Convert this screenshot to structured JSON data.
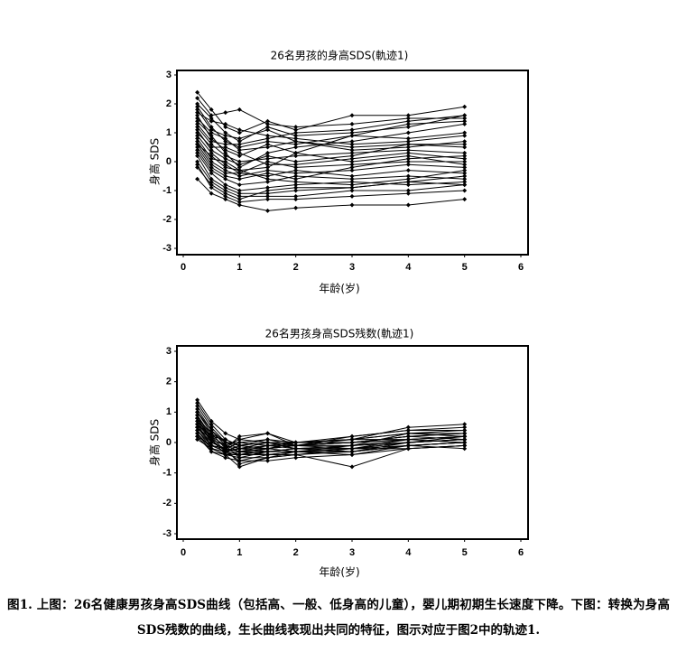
{
  "chart_data": [
    {
      "type": "line",
      "title": "26名男孩的身高SDS(軌迹1)",
      "x_label": "年龄(岁)",
      "y_label": "身高 SDS",
      "color": "#000000",
      "xlim": [
        0,
        6
      ],
      "xticks": [
        0,
        1,
        2,
        3,
        4,
        5,
        6
      ],
      "ylim": [
        -3,
        3
      ],
      "yticks": [
        -3,
        -2,
        -1,
        0,
        1,
        2,
        3
      ],
      "x": [
        0.25,
        0.5,
        0.75,
        1,
        1.5,
        2,
        3,
        4,
        5
      ],
      "series": [
        {
          "values": [
            2.4,
            1.8,
            1.2,
            1.0,
            1.4,
            1.1,
            1.6,
            1.6,
            1.9
          ]
        },
        {
          "values": [
            2.2,
            1.6,
            1.7,
            1.8,
            1.3,
            1.2,
            1.3,
            1.5,
            1.5
          ]
        },
        {
          "values": [
            2.0,
            1.5,
            1.0,
            0.7,
            1.2,
            0.9,
            1.0,
            1.2,
            1.6
          ]
        },
        {
          "values": [
            1.9,
            1.2,
            0.7,
            0.5,
            0.7,
            0.6,
            0.9,
            1.3,
            1.4
          ]
        },
        {
          "values": [
            1.7,
            1.4,
            1.3,
            1.1,
            0.9,
            0.8,
            0.6,
            0.7,
            0.9
          ]
        },
        {
          "values": [
            1.5,
            1.0,
            0.8,
            0.4,
            0.5,
            0.7,
            0.5,
            0.6,
            0.6
          ]
        },
        {
          "values": [
            1.4,
            0.9,
            0.3,
            -0.2,
            0.3,
            0.5,
            0.7,
            1.0,
            1.3
          ]
        },
        {
          "values": [
            1.2,
            0.6,
            0.2,
            0.0,
            0.1,
            0.2,
            0.3,
            0.4,
            0.3
          ]
        },
        {
          "values": [
            1.0,
            0.5,
            0.5,
            0.3,
            -0.1,
            -0.1,
            0.1,
            0.3,
            0.1
          ]
        },
        {
          "values": [
            0.9,
            0.3,
            -0.1,
            -0.4,
            0.0,
            -0.2,
            -0.1,
            0.0,
            0.0
          ]
        },
        {
          "values": [
            0.8,
            0.1,
            0.0,
            -0.3,
            -0.2,
            0.3,
            0.0,
            0.2,
            -0.1
          ]
        },
        {
          "values": [
            0.7,
            0.0,
            -0.3,
            -0.5,
            -0.3,
            -0.4,
            -0.3,
            -0.1,
            -0.2
          ]
        },
        {
          "values": [
            0.6,
            -0.1,
            -0.4,
            -0.4,
            -0.5,
            -0.3,
            -0.5,
            -0.3,
            -0.4
          ]
        },
        {
          "values": [
            0.5,
            -0.2,
            -0.5,
            -0.6,
            -0.4,
            -0.6,
            -0.2,
            0.1,
            0.2
          ]
        },
        {
          "values": [
            0.4,
            -0.3,
            -0.6,
            -0.8,
            -0.7,
            -0.5,
            -0.6,
            -0.5,
            -0.6
          ]
        },
        {
          "values": [
            0.3,
            -0.4,
            -0.8,
            -1.0,
            -0.9,
            -0.8,
            -0.7,
            -0.8,
            -0.7
          ]
        },
        {
          "values": [
            0.2,
            -0.6,
            -0.9,
            -1.1,
            -1.1,
            -1.0,
            -0.9,
            -0.7,
            -0.5
          ]
        },
        {
          "values": [
            0.0,
            -0.7,
            -1.0,
            -1.2,
            -1.2,
            -1.2,
            -1.0,
            -1.0,
            -0.8
          ]
        },
        {
          "values": [
            -0.1,
            -0.9,
            -1.2,
            -1.4,
            -1.3,
            -1.3,
            -1.2,
            -1.1,
            -1.0
          ]
        },
        {
          "values": [
            -0.6,
            -1.1,
            -1.3,
            -1.5,
            -1.7,
            -1.6,
            -1.5,
            -1.5,
            -1.3
          ]
        },
        {
          "values": [
            -0.2,
            -0.8,
            -1.1,
            -1.3,
            -1.0,
            -0.9,
            -0.9,
            -0.7,
            -0.8
          ]
        },
        {
          "values": [
            1.6,
            0.8,
            0.4,
            0.2,
            0.6,
            0.3,
            0.9,
            0.8,
            1.0
          ]
        },
        {
          "values": [
            1.3,
            0.7,
            0.6,
            0.6,
            0.8,
            1.0,
            1.1,
            1.4,
            1.6
          ]
        },
        {
          "values": [
            1.1,
            0.4,
            0.1,
            -0.1,
            0.2,
            0.0,
            0.2,
            0.6,
            0.5
          ]
        },
        {
          "values": [
            0.6,
            0.2,
            -0.2,
            -0.3,
            -0.6,
            -0.7,
            -0.8,
            -0.6,
            -0.3
          ]
        },
        {
          "values": [
            1.8,
            1.1,
            0.9,
            0.8,
            1.1,
            0.7,
            0.4,
            0.5,
            0.7
          ]
        }
      ]
    },
    {
      "type": "line",
      "title": "26名男孩身高SDS残数(軌迹1)",
      "x_label": "年龄(岁)",
      "y_label": "身高 SDS",
      "color": "#000000",
      "xlim": [
        0,
        6
      ],
      "xticks": [
        0,
        1,
        2,
        3,
        4,
        5,
        6
      ],
      "ylim": [
        -3,
        3
      ],
      "yticks": [
        -3,
        -2,
        -1,
        0,
        1,
        2,
        3
      ],
      "x": [
        0.25,
        0.5,
        0.75,
        1,
        1.5,
        2,
        3,
        4,
        5
      ],
      "series": [
        {
          "values": [
            1.4,
            0.7,
            0.3,
            0.1,
            0.3,
            0.0,
            0.1,
            0.5,
            0.6
          ]
        },
        {
          "values": [
            1.3,
            0.6,
            0.1,
            -0.1,
            0.1,
            -0.1,
            0.2,
            0.4,
            0.5
          ]
        },
        {
          "values": [
            1.2,
            0.5,
            0.0,
            -0.2,
            0.0,
            -0.2,
            -0.1,
            0.3,
            0.4
          ]
        },
        {
          "values": [
            1.1,
            0.4,
            -0.1,
            -0.3,
            -0.1,
            -0.1,
            0.0,
            0.2,
            0.3
          ]
        },
        {
          "values": [
            1.0,
            0.3,
            -0.2,
            -0.4,
            -0.2,
            0.0,
            0.1,
            0.1,
            0.2
          ]
        },
        {
          "values": [
            0.9,
            0.2,
            -0.1,
            -0.5,
            -0.3,
            -0.2,
            -0.2,
            0.0,
            0.1
          ]
        },
        {
          "values": [
            0.9,
            0.1,
            -0.3,
            -0.6,
            -0.4,
            -0.3,
            -0.3,
            -0.1,
            0.0
          ]
        },
        {
          "values": [
            0.8,
            0.0,
            -0.2,
            -0.7,
            -0.5,
            -0.4,
            -0.8,
            -0.2,
            -0.1
          ]
        },
        {
          "values": [
            0.8,
            0.1,
            -0.4,
            -0.8,
            -0.5,
            -0.3,
            -0.4,
            -0.1,
            0.0
          ]
        },
        {
          "values": [
            0.7,
            0.2,
            -0.3,
            -0.4,
            -0.3,
            -0.2,
            -0.1,
            0.0,
            0.1
          ]
        },
        {
          "values": [
            0.7,
            0.0,
            -0.2,
            -0.3,
            -0.2,
            -0.1,
            -0.2,
            0.1,
            0.2
          ]
        },
        {
          "values": [
            0.6,
            -0.1,
            -0.3,
            -0.2,
            -0.1,
            0.0,
            0.0,
            0.2,
            0.3
          ]
        },
        {
          "values": [
            0.6,
            0.1,
            -0.1,
            0.1,
            0.0,
            -0.1,
            0.1,
            0.3,
            0.2
          ]
        },
        {
          "values": [
            0.5,
            0.0,
            -0.2,
            0.2,
            0.3,
            -0.1,
            -0.1,
            0.0,
            0.1
          ]
        },
        {
          "values": [
            0.5,
            -0.1,
            -0.3,
            -0.1,
            -0.2,
            -0.3,
            -0.3,
            -0.1,
            0.0
          ]
        },
        {
          "values": [
            0.4,
            -0.2,
            -0.4,
            -0.3,
            -0.4,
            -0.4,
            -0.2,
            -0.2,
            -0.1
          ]
        },
        {
          "values": [
            0.4,
            -0.1,
            -0.2,
            0.0,
            -0.1,
            -0.2,
            -0.3,
            0.0,
            0.1
          ]
        },
        {
          "values": [
            0.3,
            -0.2,
            -0.3,
            -0.2,
            -0.3,
            -0.3,
            -0.1,
            0.1,
            0.2
          ]
        },
        {
          "values": [
            0.3,
            -0.3,
            -0.4,
            -0.5,
            -0.5,
            -0.4,
            -0.3,
            -0.1,
            0.0
          ]
        },
        {
          "values": [
            0.2,
            -0.3,
            -0.5,
            -0.6,
            -0.6,
            -0.5,
            -0.4,
            -0.2,
            -0.1
          ]
        },
        {
          "values": [
            0.1,
            -0.2,
            -0.4,
            -0.4,
            -0.4,
            -0.3,
            -0.2,
            0.0,
            0.2
          ]
        },
        {
          "values": [
            1.0,
            0.4,
            0.0,
            0.0,
            0.1,
            0.0,
            0.1,
            0.3,
            0.3
          ]
        },
        {
          "values": [
            0.6,
            0.2,
            0.1,
            -0.1,
            0.0,
            0.0,
            0.2,
            0.4,
            0.4
          ]
        },
        {
          "values": [
            0.5,
            0.1,
            -0.1,
            -0.2,
            -0.2,
            -0.1,
            0.0,
            0.1,
            0.0
          ]
        },
        {
          "values": [
            0.2,
            -0.1,
            -0.2,
            -0.3,
            -0.3,
            -0.2,
            -0.2,
            -0.1,
            -0.2
          ]
        },
        {
          "values": [
            0.8,
            0.3,
            0.0,
            -0.1,
            -0.2,
            -0.1,
            0.0,
            0.2,
            0.1
          ]
        }
      ]
    }
  ],
  "caption": "图1. 上图：26名健康男孩身高SDS曲线（包括高、一般、低身高的儿童），婴儿期初期生长速度下降。下图：转换为身高SDS残数的曲线，生长曲线表现出共同的特征，图示对应于图2中的轨迹1."
}
